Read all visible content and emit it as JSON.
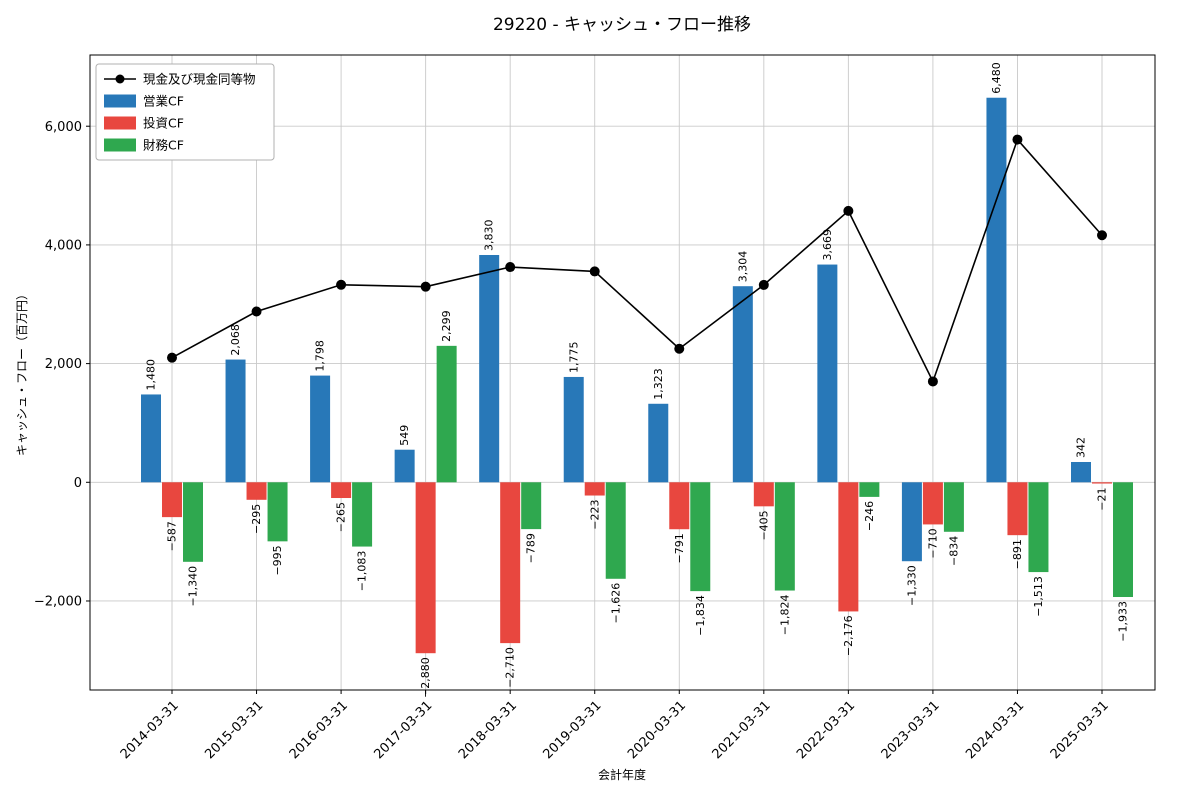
{
  "title": "29220 - キャッシュ・フロー推移",
  "xlabel": "会計年度",
  "ylabel": "キャッシュ・フロー（百万円）",
  "colors": {
    "operating_cf": "#2878b8",
    "investing_cf": "#e8473f",
    "financing_cf": "#2fa84f",
    "cash_line": "#000000",
    "grid": "#c9c9c9"
  },
  "chart_data": {
    "type": "bar",
    "title": "29220 - キャッシュ・フロー推移",
    "xlabel": "会計年度",
    "ylabel": "キャッシュ・フロー（百万円）",
    "categories": [
      "2014-03-31",
      "2015-03-31",
      "2016-03-31",
      "2017-03-31",
      "2018-03-31",
      "2019-03-31",
      "2020-03-31",
      "2021-03-31",
      "2022-03-31",
      "2023-03-31",
      "2024-03-31",
      "2025-03-31"
    ],
    "series": [
      {
        "name": "営業CF",
        "color": "#2878b8",
        "values": [
          1480,
          2068,
          1798,
          549,
          3830,
          1775,
          1323,
          3304,
          3669,
          -1330,
          6480,
          342
        ]
      },
      {
        "name": "投資CF",
        "color": "#e8473f",
        "values": [
          -587,
          -295,
          -265,
          -2880,
          -2710,
          -223,
          -791,
          -405,
          -2176,
          -710,
          -891,
          -21
        ]
      },
      {
        "name": "財務CF",
        "color": "#2fa84f",
        "values": [
          -1340,
          -995,
          -1083,
          2299,
          -789,
          -1626,
          -1834,
          -1824,
          -246,
          -834,
          -1513,
          -1933
        ]
      }
    ],
    "line_series": {
      "name": "現金及び現金同等物",
      "color": "#000000",
      "values": [
        2100,
        2878,
        3328,
        3296,
        3627,
        3553,
        2251,
        3326,
        4573,
        1699,
        5775,
        4163
      ]
    },
    "ylim": [
      -3500,
      7200
    ],
    "yticks": [
      -2000,
      0,
      2000,
      4000,
      6000
    ],
    "grid": true,
    "legend_position": "upper-left",
    "legend_entries": [
      "現金及び現金同等物",
      "営業CF",
      "投資CF",
      "財務CF"
    ]
  }
}
